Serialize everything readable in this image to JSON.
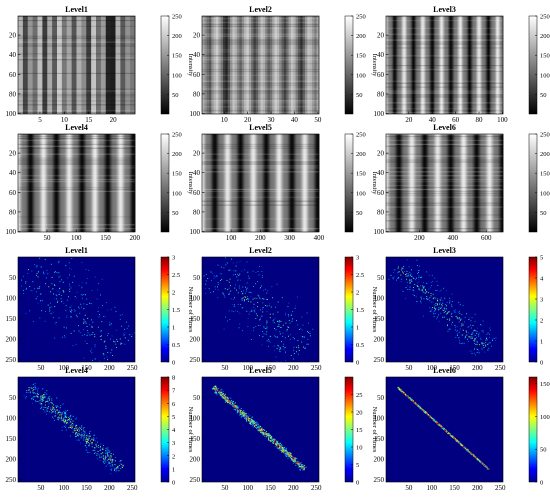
{
  "figure": {
    "colormap_top": "gray",
    "colormap_bottom": "jet",
    "background": "#ffffff"
  },
  "chart_data": [
    {
      "type": "heatmap",
      "title": "Level1",
      "xlim": [
        0.5,
        24.5
      ],
      "ylim": [
        0.5,
        100.5
      ],
      "xticks": [
        5,
        10,
        15,
        20
      ],
      "yticks": [
        20,
        40,
        60,
        80,
        100
      ],
      "colorbar": {
        "label": "Intensity",
        "range": [
          0,
          250
        ],
        "ticks": [
          50,
          100,
          150,
          200,
          250
        ],
        "colormap": "gray"
      },
      "columns": 24,
      "rows": 100,
      "column_intensity": [
        180,
        70,
        150,
        110,
        190,
        60,
        170,
        90,
        200,
        120,
        165,
        85,
        175,
        140,
        60,
        195,
        110,
        155,
        35,
        30,
        175,
        90,
        145,
        120
      ]
    },
    {
      "type": "heatmap",
      "title": "Level2",
      "xlim": [
        0.5,
        50.5
      ],
      "ylim": [
        0.5,
        100.5
      ],
      "xticks": [
        10,
        20,
        30,
        40,
        50
      ],
      "yticks": [
        20,
        40,
        60,
        80,
        100
      ],
      "colorbar": {
        "label": "Intensity",
        "range": [
          0,
          250
        ],
        "ticks": [
          50,
          100,
          150,
          200,
          250
        ],
        "colormap": "gray"
      },
      "columns": 50,
      "rows": 100,
      "column_intensity": [
        170,
        140,
        110,
        90,
        150,
        180,
        200,
        160,
        120,
        60,
        40,
        90,
        150,
        190,
        170,
        130,
        100,
        140,
        180,
        200,
        160,
        110,
        70,
        100,
        150,
        190,
        175,
        130,
        95,
        120,
        165,
        200,
        180,
        140,
        100,
        70,
        110,
        160,
        195,
        175,
        130,
        85,
        55,
        100,
        150,
        190,
        180,
        150,
        120,
        160
      ]
    },
    {
      "type": "heatmap",
      "title": "Level3",
      "xlim": [
        0.5,
        100.5
      ],
      "ylim": [
        0.5,
        100.5
      ],
      "xticks": [
        20,
        40,
        60,
        80,
        100
      ],
      "yticks": [
        20,
        40,
        60,
        80,
        100
      ],
      "colorbar": {
        "label": "Intensity",
        "range": [
          0,
          250
        ],
        "ticks": [
          50,
          100,
          150,
          200,
          250
        ],
        "colormap": "gray"
      },
      "columns": 100,
      "rows": 100,
      "period": 16
    },
    {
      "type": "heatmap",
      "title": "Level4",
      "xlim": [
        0.5,
        200.5
      ],
      "ylim": [
        0.5,
        100.5
      ],
      "xticks": [
        50,
        100,
        150,
        200
      ],
      "yticks": [
        20,
        40,
        60,
        80,
        100
      ],
      "colorbar": {
        "label": "Intensity",
        "range": [
          0,
          250
        ],
        "ticks": [
          50,
          100,
          150,
          200,
          250
        ],
        "colormap": "gray"
      },
      "columns": 200,
      "rows": 100,
      "period": 44
    },
    {
      "type": "heatmap",
      "title": "Level5",
      "xlim": [
        0.5,
        400.5
      ],
      "ylim": [
        0.5,
        100.5
      ],
      "xticks": [
        100,
        200,
        300,
        400
      ],
      "yticks": [
        20,
        40,
        60,
        80,
        100
      ],
      "colorbar": {
        "label": "Intensity",
        "range": [
          0,
          250
        ],
        "ticks": [
          50,
          100,
          150,
          200,
          250
        ],
        "colormap": "gray"
      },
      "columns": 400,
      "rows": 100,
      "period": 88
    },
    {
      "type": "heatmap",
      "title": "Level6",
      "xlim": [
        0.5,
        700.5
      ],
      "ylim": [
        0.5,
        100.5
      ],
      "xticks": [
        200,
        400,
        600
      ],
      "yticks": [
        20,
        40,
        60,
        80,
        100
      ],
      "colorbar": {
        "label": "Intensity",
        "range": [
          0,
          250
        ],
        "ticks": [
          50,
          100,
          150,
          200,
          250
        ],
        "colormap": "gray"
      },
      "columns": 700,
      "rows": 100,
      "period": 155
    },
    {
      "type": "heatmap",
      "title": "Level1",
      "xlim": [
        0,
        256
      ],
      "ylim": [
        0,
        256
      ],
      "xticks": [
        50,
        100,
        150,
        200,
        250
      ],
      "yticks": [
        50,
        100,
        150,
        200,
        250
      ],
      "colorbar": {
        "label": "Number of Times",
        "range": [
          0,
          3
        ],
        "ticks": [
          0,
          0.5,
          1,
          1.5,
          2,
          2.5,
          3
        ],
        "colormap": "jet"
      },
      "max_count": 3,
      "distribution": "sparse scattered points filling a broad band around the diagonal",
      "center_offset": 0,
      "spread": 70,
      "density": 0.06
    },
    {
      "type": "heatmap",
      "title": "Level2",
      "xlim": [
        0,
        256
      ],
      "ylim": [
        0,
        256
      ],
      "xticks": [
        50,
        100,
        150,
        200,
        250
      ],
      "yticks": [
        50,
        100,
        150,
        200,
        250
      ],
      "colorbar": {
        "label": "Number of Times",
        "range": [
          0,
          3
        ],
        "ticks": [
          0,
          0.5,
          1,
          1.5,
          2,
          2.5,
          3
        ],
        "colormap": "jet"
      },
      "max_count": 3,
      "distribution": "scattered points in a broad band around the diagonal with two denser streaks",
      "center_offset": 0,
      "spread": 60,
      "density": 0.1
    },
    {
      "type": "heatmap",
      "title": "Level3",
      "xlim": [
        0,
        256
      ],
      "ylim": [
        0,
        256
      ],
      "xticks": [
        50,
        100,
        150,
        200,
        250
      ],
      "yticks": [
        50,
        100,
        150,
        200,
        250
      ],
      "colorbar": {
        "label": "Number of Times",
        "range": [
          0,
          5
        ],
        "ticks": [
          0,
          1,
          2,
          3,
          4,
          5
        ],
        "colormap": "jet"
      },
      "max_count": 5,
      "distribution": "band concentrated along the diagonal",
      "center_offset": 0,
      "spread": 32,
      "density": 0.16
    },
    {
      "type": "heatmap",
      "title": "Level4",
      "xlim": [
        0,
        256
      ],
      "ylim": [
        0,
        256
      ],
      "xticks": [
        50,
        100,
        150,
        200,
        250
      ],
      "yticks": [
        50,
        100,
        150,
        200,
        250
      ],
      "colorbar": {
        "label": "Number of Times",
        "range": [
          0,
          8
        ],
        "ticks": [
          0,
          1,
          2,
          3,
          4,
          5,
          6,
          7,
          8
        ],
        "colormap": "jet"
      },
      "max_count": 8,
      "distribution": "narrow band along the diagonal with two bright streaks",
      "center_offset": 0,
      "spread": 18,
      "density": 0.3
    },
    {
      "type": "heatmap",
      "title": "Level5",
      "xlim": [
        0,
        256
      ],
      "ylim": [
        0,
        256
      ],
      "xticks": [
        50,
        100,
        150,
        200,
        250
      ],
      "yticks": [
        50,
        100,
        150,
        200,
        250
      ],
      "colorbar": {
        "label": "Number of Times",
        "range": [
          0,
          30
        ],
        "ticks": [
          0,
          5,
          10,
          15,
          20,
          25
        ],
        "colormap": "jet"
      },
      "max_count": 30,
      "distribution": "thin double line along the diagonal",
      "center_offset": 0,
      "spread": 6,
      "density": 0.7
    },
    {
      "type": "heatmap",
      "title": "Level6",
      "xlim": [
        0,
        256
      ],
      "ylim": [
        0,
        256
      ],
      "xticks": [
        50,
        100,
        150,
        200,
        250
      ],
      "yticks": [
        50,
        100,
        150,
        200,
        250
      ],
      "colorbar": {
        "label": "Number of Times",
        "range": [
          0,
          160
        ],
        "ticks": [
          0,
          50,
          100,
          150
        ],
        "colormap": "jet"
      },
      "max_count": 160,
      "distribution": "single thin line along the diagonal",
      "center_offset": 0,
      "spread": 1.5,
      "density": 1.0
    }
  ]
}
